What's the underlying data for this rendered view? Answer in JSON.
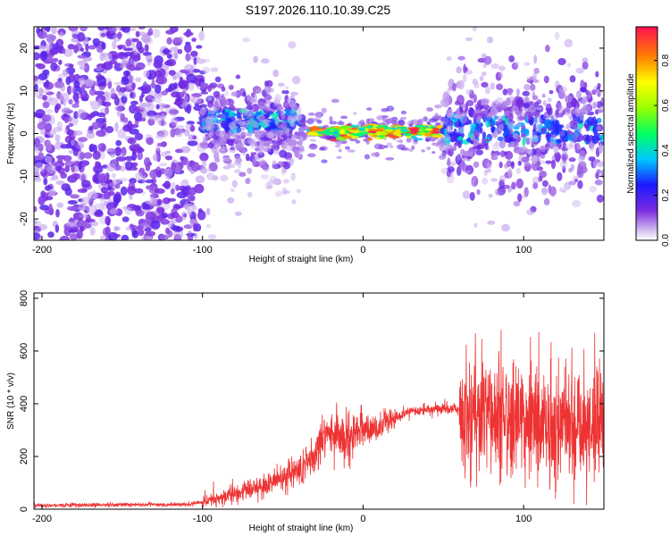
{
  "figure_title": "S197.2026.110.10.39.C25",
  "chart_data": [
    {
      "type": "heatmap",
      "name": "spectrogram",
      "xlabel": "Height of straight line (km)",
      "ylabel": "Frequency (Hz)",
      "xlim": [
        -205,
        150
      ],
      "ylim": [
        -25,
        25
      ],
      "xticks": [
        -200,
        -100,
        0,
        100
      ],
      "yticks": [
        -20,
        -10,
        0,
        10,
        20
      ],
      "colorbar": {
        "label": "Normalized spectral amplitude",
        "range": [
          0.0,
          0.95
        ],
        "ticks": [
          0.0,
          0.2,
          0.4,
          0.6,
          0.8
        ]
      },
      "description_regions": [
        {
          "x_from": -205,
          "x_to": -100,
          "character": "diffuse broadband noise, low amplitude"
        },
        {
          "x_from": -100,
          "x_to": -40,
          "character": "band centered ~3 Hz, moderate amplitude"
        },
        {
          "x_from": -40,
          "x_to": 50,
          "character": "narrow band at ~0.5 Hz, high amplitude"
        },
        {
          "x_from": 50,
          "x_to": 150,
          "character": "broadened band, moderate amplitude"
        }
      ]
    },
    {
      "type": "line",
      "name": "snr",
      "xlabel": "Height of straight line (km)",
      "ylabel": "SNR (10 * v/v)",
      "xlim": [
        -205,
        150
      ],
      "ylim": [
        0,
        820
      ],
      "xticks": [
        -200,
        -100,
        0,
        100
      ],
      "yticks": [
        0,
        200,
        400,
        600,
        800
      ],
      "color": "#ee3333",
      "profile": [
        {
          "x": -205,
          "y": 15
        },
        {
          "x": -110,
          "y": 18
        },
        {
          "x": -100,
          "y": 25
        },
        {
          "x": -90,
          "y": 40
        },
        {
          "x": -80,
          "y": 60
        },
        {
          "x": -70,
          "y": 75
        },
        {
          "x": -60,
          "y": 95
        },
        {
          "x": -50,
          "y": 120
        },
        {
          "x": -40,
          "y": 150
        },
        {
          "x": -30,
          "y": 200
        },
        {
          "x": -25,
          "y": 260
        },
        {
          "x": -20,
          "y": 290
        },
        {
          "x": -10,
          "y": 260
        },
        {
          "x": 0,
          "y": 310
        },
        {
          "x": 10,
          "y": 300
        },
        {
          "x": 15,
          "y": 330
        },
        {
          "x": 25,
          "y": 360
        },
        {
          "x": 35,
          "y": 375
        },
        {
          "x": 50,
          "y": 380
        },
        {
          "x": 60,
          "y": 380
        },
        {
          "x": 65,
          "y": 370
        },
        {
          "x": 100,
          "y": 330
        },
        {
          "x": 150,
          "y": 330
        }
      ]
    }
  ]
}
